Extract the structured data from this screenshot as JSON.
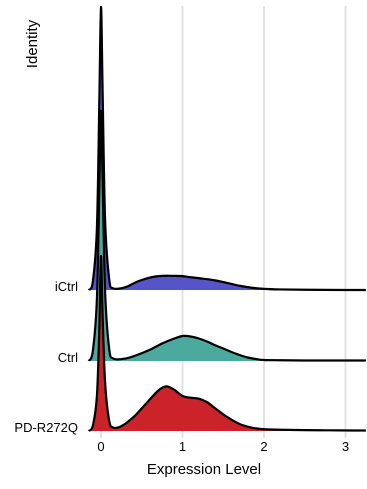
{
  "chart_data": {
    "type": "ridgeline",
    "xlabel": "Expression Level",
    "ylabel": "Identity",
    "xlim": [
      -0.15,
      3.25
    ],
    "x_ticks": [
      0,
      1,
      2,
      3
    ],
    "x_tick_labels": [
      "0",
      "1",
      "2",
      "3"
    ],
    "grid": "vertical-major",
    "series": [
      {
        "name": "PD-R272Q",
        "color": "#CC2229",
        "points": [
          [
            -0.15,
            0.0
          ],
          [
            -0.1,
            0.03
          ],
          [
            -0.05,
            0.2
          ],
          [
            -0.02,
            0.6
          ],
          [
            0.0,
            1.0
          ],
          [
            0.02,
            0.66
          ],
          [
            0.05,
            0.28
          ],
          [
            0.1,
            0.06
          ],
          [
            0.15,
            0.02
          ],
          [
            0.25,
            0.028
          ],
          [
            0.4,
            0.08
          ],
          [
            0.55,
            0.155
          ],
          [
            0.7,
            0.23
          ],
          [
            0.8,
            0.255
          ],
          [
            0.9,
            0.235
          ],
          [
            1.0,
            0.2
          ],
          [
            1.1,
            0.19
          ],
          [
            1.2,
            0.185
          ],
          [
            1.3,
            0.165
          ],
          [
            1.4,
            0.13
          ],
          [
            1.5,
            0.095
          ],
          [
            1.6,
            0.065
          ],
          [
            1.7,
            0.04
          ],
          [
            1.8,
            0.025
          ],
          [
            1.9,
            0.015
          ],
          [
            2.0,
            0.01
          ],
          [
            2.2,
            0.007
          ],
          [
            2.5,
            0.005
          ],
          [
            2.8,
            0.004
          ],
          [
            3.1,
            0.003
          ],
          [
            3.25,
            0.003
          ]
        ]
      },
      {
        "name": "Ctrl",
        "color": "#4CA99D",
        "points": [
          [
            -0.15,
            0.0
          ],
          [
            -0.1,
            0.04
          ],
          [
            -0.05,
            0.25
          ],
          [
            -0.02,
            0.7
          ],
          [
            0.0,
            1.0
          ],
          [
            0.02,
            0.72
          ],
          [
            0.05,
            0.28
          ],
          [
            0.1,
            0.05
          ],
          [
            0.15,
            0.01
          ],
          [
            0.3,
            0.01
          ],
          [
            0.45,
            0.025
          ],
          [
            0.6,
            0.045
          ],
          [
            0.75,
            0.07
          ],
          [
            0.9,
            0.09
          ],
          [
            1.0,
            0.1
          ],
          [
            1.1,
            0.098
          ],
          [
            1.2,
            0.09
          ],
          [
            1.3,
            0.078
          ],
          [
            1.4,
            0.063
          ],
          [
            1.5,
            0.05
          ],
          [
            1.6,
            0.036
          ],
          [
            1.7,
            0.024
          ],
          [
            1.8,
            0.014
          ],
          [
            1.9,
            0.008
          ],
          [
            2.0,
            0.004
          ],
          [
            2.2,
            0.003
          ],
          [
            2.5,
            0.002
          ],
          [
            3.0,
            0.002
          ],
          [
            3.25,
            0.002
          ]
        ]
      },
      {
        "name": "iCtrl",
        "color": "#5655C7",
        "points": [
          [
            -0.15,
            0.0
          ],
          [
            -0.1,
            0.03
          ],
          [
            -0.05,
            0.22
          ],
          [
            -0.02,
            0.68
          ],
          [
            0.0,
            1.0
          ],
          [
            0.02,
            0.7
          ],
          [
            0.05,
            0.25
          ],
          [
            0.1,
            0.04
          ],
          [
            0.15,
            0.006
          ],
          [
            0.3,
            0.01
          ],
          [
            0.45,
            0.03
          ],
          [
            0.6,
            0.044
          ],
          [
            0.75,
            0.05
          ],
          [
            0.9,
            0.05
          ],
          [
            1.0,
            0.049
          ],
          [
            1.1,
            0.045
          ],
          [
            1.25,
            0.04
          ],
          [
            1.4,
            0.034
          ],
          [
            1.55,
            0.025
          ],
          [
            1.7,
            0.015
          ],
          [
            1.85,
            0.008
          ],
          [
            2.0,
            0.004
          ],
          [
            2.2,
            0.002
          ],
          [
            2.5,
            0.001
          ],
          [
            3.0,
            0.0
          ],
          [
            3.25,
            0.0
          ]
        ]
      }
    ]
  }
}
